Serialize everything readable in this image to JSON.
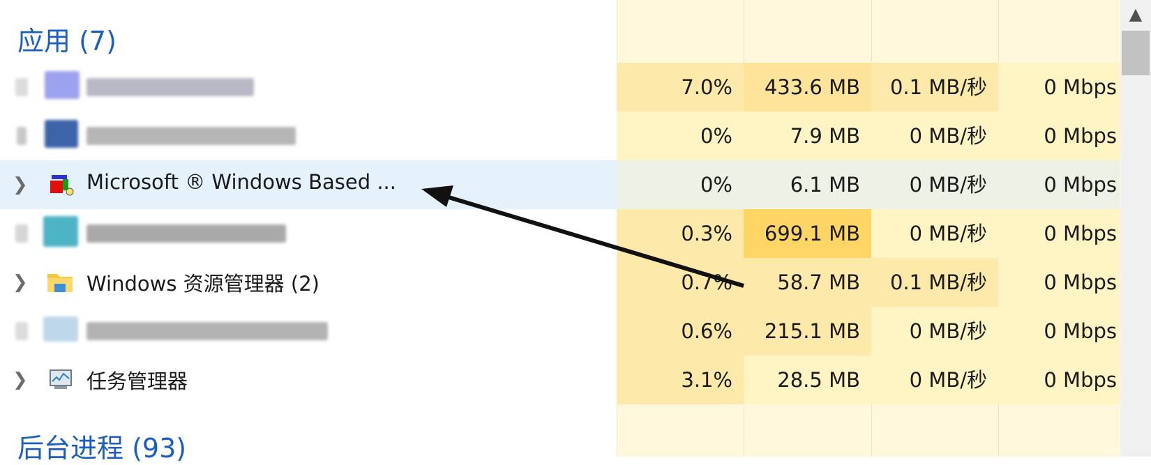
{
  "apps_header": "应用 (7)",
  "background_header": "后台进程 (93)",
  "rows": [
    {
      "name": "",
      "cpu": "7.0%",
      "memory": "433.6 MB",
      "disk": "0.1 MB/秒",
      "network": "0 Mbps",
      "blurred": true
    },
    {
      "name": "",
      "cpu": "0%",
      "memory": "7.9 MB",
      "disk": "0 MB/秒",
      "network": "0 Mbps",
      "blurred": true
    },
    {
      "name": "Microsoft ® Windows Based ...",
      "cpu": "0%",
      "memory": "6.1 MB",
      "disk": "0 MB/秒",
      "network": "0 Mbps",
      "selected": true,
      "icon": "cube-app-icon"
    },
    {
      "name": "",
      "cpu": "0.3%",
      "memory": "699.1 MB",
      "disk": "0 MB/秒",
      "network": "0 Mbps",
      "blurred": true
    },
    {
      "name": "Windows 资源管理器 (2)",
      "cpu": "0.7%",
      "memory": "58.7 MB",
      "disk": "0.1 MB/秒",
      "network": "0 Mbps",
      "icon": "folder-icon"
    },
    {
      "name": "",
      "cpu": "0.6%",
      "memory": "215.1 MB",
      "disk": "0 MB/秒",
      "network": "0 Mbps",
      "blurred": true
    },
    {
      "name": "任务管理器",
      "cpu": "3.1%",
      "memory": "28.5 MB",
      "disk": "0 MB/秒",
      "network": "0 Mbps",
      "icon": "task-manager-icon"
    }
  ],
  "colors": {
    "header": "#1a5fbf",
    "selected_row": "#e5f1fb",
    "heat_low": "#fff4c4",
    "heat_mid": "#fde9a9",
    "heat_high": "#ffd666",
    "annotation_arrow": "#111111"
  }
}
